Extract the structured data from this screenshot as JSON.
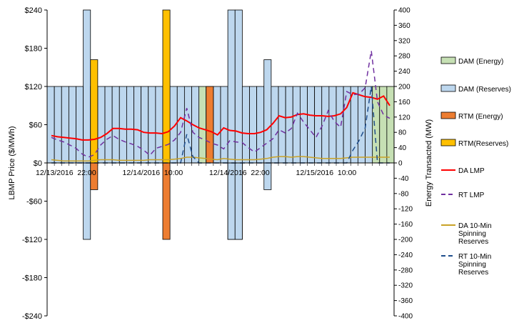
{
  "chart_data": {
    "type": "bar",
    "ylabel_left": "LBMP Price ($/MWh)",
    "ylabel_right": "Energy Transacted (MW)",
    "ylim_left": [
      -240,
      240
    ],
    "ylim_right": [
      -400,
      400
    ],
    "left_ticks": [
      "$240",
      "$180",
      "$120",
      "$60",
      "$0",
      "-$60",
      "-$120",
      "-$180",
      "-$240"
    ],
    "right_ticks": [
      "400",
      "360",
      "320",
      "280",
      "240",
      "200",
      "160",
      "120",
      "80",
      "40",
      "0",
      "-40",
      "-80",
      "-120",
      "-160",
      "-200",
      "-240",
      "-280",
      "-320",
      "-360",
      "-400"
    ],
    "x_labels": [
      {
        "text": "12/13/2016  22:00",
        "index": 3
      },
      {
        "text": "12/14/2016  10:00",
        "index": 15
      },
      {
        "text": "12/14/2016  22:00",
        "index": 27
      },
      {
        "text": "12/15/2016  10:00",
        "index": 39
      }
    ],
    "hours": 48,
    "bar_series": [
      {
        "name": "DAM (Energy)",
        "color": "#c6e0b4",
        "edge": "#000000",
        "values": [
          0,
          0,
          0,
          0,
          0,
          0,
          0,
          0,
          0,
          0,
          0,
          0,
          0,
          0,
          0,
          0,
          0,
          0,
          0,
          0,
          0,
          200,
          0,
          0,
          0,
          -200,
          -200,
          0,
          0,
          0,
          0,
          0,
          0,
          0,
          0,
          0,
          0,
          0,
          0,
          0,
          0,
          0,
          0,
          0,
          0,
          200,
          200,
          200
        ]
      },
      {
        "name": "DAM (Reserves)",
        "color": "#bdd7ee",
        "edge": "#000000",
        "values": [
          200,
          200,
          200,
          200,
          200,
          400,
          200,
          200,
          200,
          200,
          200,
          200,
          200,
          200,
          200,
          200,
          200,
          200,
          200,
          200,
          200,
          0,
          200,
          200,
          200,
          400,
          400,
          200,
          200,
          200,
          270,
          200,
          200,
          200,
          200,
          200,
          200,
          200,
          200,
          200,
          200,
          200,
          200,
          200,
          200,
          0,
          0,
          0
        ]
      },
      {
        "name": "RTM (Energy)",
        "color": "#ed7d31",
        "edge": "#000000",
        "values": [
          0,
          0,
          0,
          0,
          0,
          0,
          0,
          0,
          0,
          0,
          0,
          0,
          0,
          0,
          0,
          0,
          0,
          0,
          0,
          0,
          0,
          0,
          200,
          0,
          0,
          0,
          0,
          0,
          0,
          0,
          0,
          0,
          0,
          0,
          0,
          0,
          0,
          0,
          0,
          0,
          0,
          0,
          0,
          0,
          0,
          0,
          0,
          0
        ]
      },
      {
        "name": "RTM(Reserves)",
        "color": "#ffc000",
        "edge": "#000000",
        "values": [
          0,
          0,
          0,
          0,
          0,
          0,
          270,
          0,
          0,
          0,
          0,
          0,
          0,
          0,
          0,
          0,
          400,
          0,
          0,
          0,
          0,
          0,
          0,
          0,
          0,
          0,
          0,
          0,
          0,
          0,
          0,
          0,
          0,
          0,
          0,
          0,
          0,
          0,
          0,
          0,
          0,
          0,
          0,
          0,
          0,
          0,
          0,
          0
        ]
      }
    ],
    "negative_bars": [
      {
        "name": "DAM (Reserves)",
        "color": "#bdd7ee",
        "values": {
          "5": -200,
          "25": -200,
          "26": -200,
          "30": -70
        }
      },
      {
        "name": "DAM (Energy)",
        "color": "#c6e0b4",
        "values": {}
      },
      {
        "name": "RTM (Energy)",
        "color": "#ed7d31",
        "values": {
          "6": -70,
          "16": -200
        }
      },
      {
        "name": "RTM(Reserves)",
        "color": "#ffc000",
        "values": {}
      }
    ],
    "line_series": [
      {
        "name": "DA LMP",
        "color": "#ff0000",
        "dash": "",
        "width": 2,
        "values": [
          43,
          41,
          40,
          39,
          38,
          36,
          36,
          37,
          40,
          46,
          54,
          54,
          53,
          53,
          52,
          48,
          47,
          47,
          46,
          49,
          58,
          71,
          66,
          60,
          55,
          52,
          49,
          44,
          55,
          51,
          50,
          47,
          46,
          46,
          48,
          52,
          62,
          74,
          71,
          72,
          76,
          77,
          75,
          74,
          74,
          73,
          74,
          77,
          87,
          110,
          107,
          104,
          103,
          100,
          105,
          90
        ]
      },
      {
        "name": "RT LMP",
        "color": "#7030a0",
        "dash": "7,5",
        "width": 1.5,
        "values": [
          40,
          36,
          33,
          28,
          23,
          14,
          9,
          13,
          28,
          37,
          43,
          37,
          33,
          30,
          26,
          20,
          12,
          23,
          26,
          29,
          36,
          48,
          86,
          48,
          40,
          36,
          31,
          28,
          22,
          35,
          33,
          32,
          24,
          17,
          24,
          31,
          38,
          52,
          47,
          54,
          78,
          64,
          52,
          40,
          58,
          82,
          65,
          56,
          112,
          107,
          108,
          118,
          176,
          96,
          75,
          70
        ]
      },
      {
        "name": "DA 10-Min Spinning Reserves",
        "color": "#c9a227",
        "dash": "",
        "width": 1.5,
        "values": [
          5,
          4,
          3,
          3,
          3,
          3,
          3,
          4,
          5,
          5,
          5,
          4,
          4,
          4,
          4,
          4,
          5,
          5,
          5,
          5,
          6,
          7,
          9,
          9,
          8,
          7,
          6,
          5,
          7,
          6,
          5,
          5,
          5,
          5,
          6,
          7,
          9,
          10,
          10,
          9,
          10,
          10,
          9,
          8,
          7,
          7,
          7,
          7,
          8,
          9,
          9,
          9,
          9,
          9,
          9,
          9
        ]
      },
      {
        "name": "RT 10-Min Spinning Reserves",
        "color": "#1f4e8c",
        "dash": "7,5",
        "width": 1.5,
        "values": [
          0,
          0,
          0,
          0,
          0,
          0,
          0,
          0,
          0,
          0,
          0,
          0,
          0,
          0,
          0,
          0,
          0,
          0,
          0,
          0,
          0,
          0,
          45,
          10,
          0,
          0,
          0,
          0,
          0,
          0,
          0,
          0,
          0,
          0,
          0,
          0,
          0,
          0,
          0,
          0,
          0,
          0,
          0,
          0,
          0,
          0,
          0,
          0,
          0,
          20,
          35,
          55,
          120,
          0,
          0,
          0
        ]
      }
    ],
    "legend": [
      {
        "name": "DAM (Energy)",
        "kind": "box",
        "color": "#c6e0b4"
      },
      {
        "name": "DAM (Reserves)",
        "kind": "box",
        "color": "#bdd7ee"
      },
      {
        "name": "RTM (Energy)",
        "kind": "box",
        "color": "#ed7d31"
      },
      {
        "name": "RTM(Reserves)",
        "kind": "box",
        "color": "#ffc000"
      },
      {
        "name": "DA LMP",
        "kind": "line",
        "color": "#ff0000",
        "dash": ""
      },
      {
        "name": "RT LMP",
        "kind": "line",
        "color": "#7030a0",
        "dash": "6,4"
      },
      {
        "name": "DA 10-Min\nSpinning\nReserves",
        "kind": "line",
        "color": "#c9a227",
        "dash": ""
      },
      {
        "name": "RT 10-Min\nSpinning\nReserves",
        "kind": "line",
        "color": "#1f4e8c",
        "dash": "6,4"
      }
    ],
    "grid": false,
    "legend_position": "right"
  }
}
